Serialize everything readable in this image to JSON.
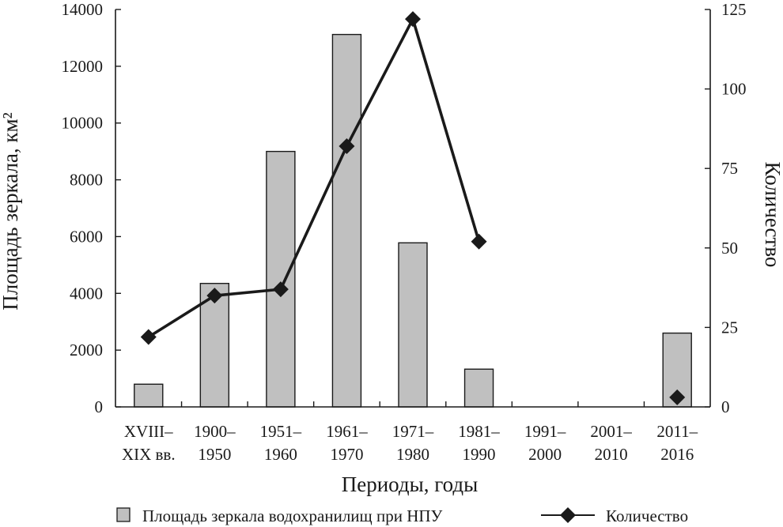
{
  "chart_data": {
    "type": "bar",
    "categories": [
      [
        "XVIII–",
        "XIX вв."
      ],
      [
        "1900–",
        "1950"
      ],
      [
        "1951–",
        "1960"
      ],
      [
        "1961–",
        "1970"
      ],
      [
        "1971–",
        "1980"
      ],
      [
        "1981–",
        "1990"
      ],
      [
        "1991–",
        "2000"
      ],
      [
        "2001–",
        "2010"
      ],
      [
        "2011–",
        "2016"
      ]
    ],
    "series": [
      {
        "name": "Площадь зеркала водохранилищ при НПУ",
        "type": "bar",
        "axis": "left",
        "values": [
          800,
          4350,
          9000,
          13120,
          5780,
          1330,
          null,
          null,
          2600
        ]
      },
      {
        "name": "Количество",
        "type": "line",
        "axis": "right",
        "values": [
          22,
          35,
          37,
          82,
          122,
          52,
          null,
          null,
          3
        ]
      }
    ],
    "xlabel": "Периоды, годы",
    "ylabel": "Площадь зеркала, км²",
    "y2label": "Количество",
    "ylim": [
      0,
      14000
    ],
    "y2lim": [
      0,
      125
    ],
    "yticks": [
      "0",
      "2000",
      "4000",
      "6000",
      "8000",
      "10000",
      "12000",
      "14000"
    ],
    "y2ticks": [
      "0",
      "25",
      "50",
      "75",
      "100",
      "125"
    ],
    "legend_position": "bottom",
    "grid": false,
    "colors": {
      "bar": "#c0c0c0",
      "line": "#1a1a1a",
      "axis": "#1a1a1a"
    }
  }
}
